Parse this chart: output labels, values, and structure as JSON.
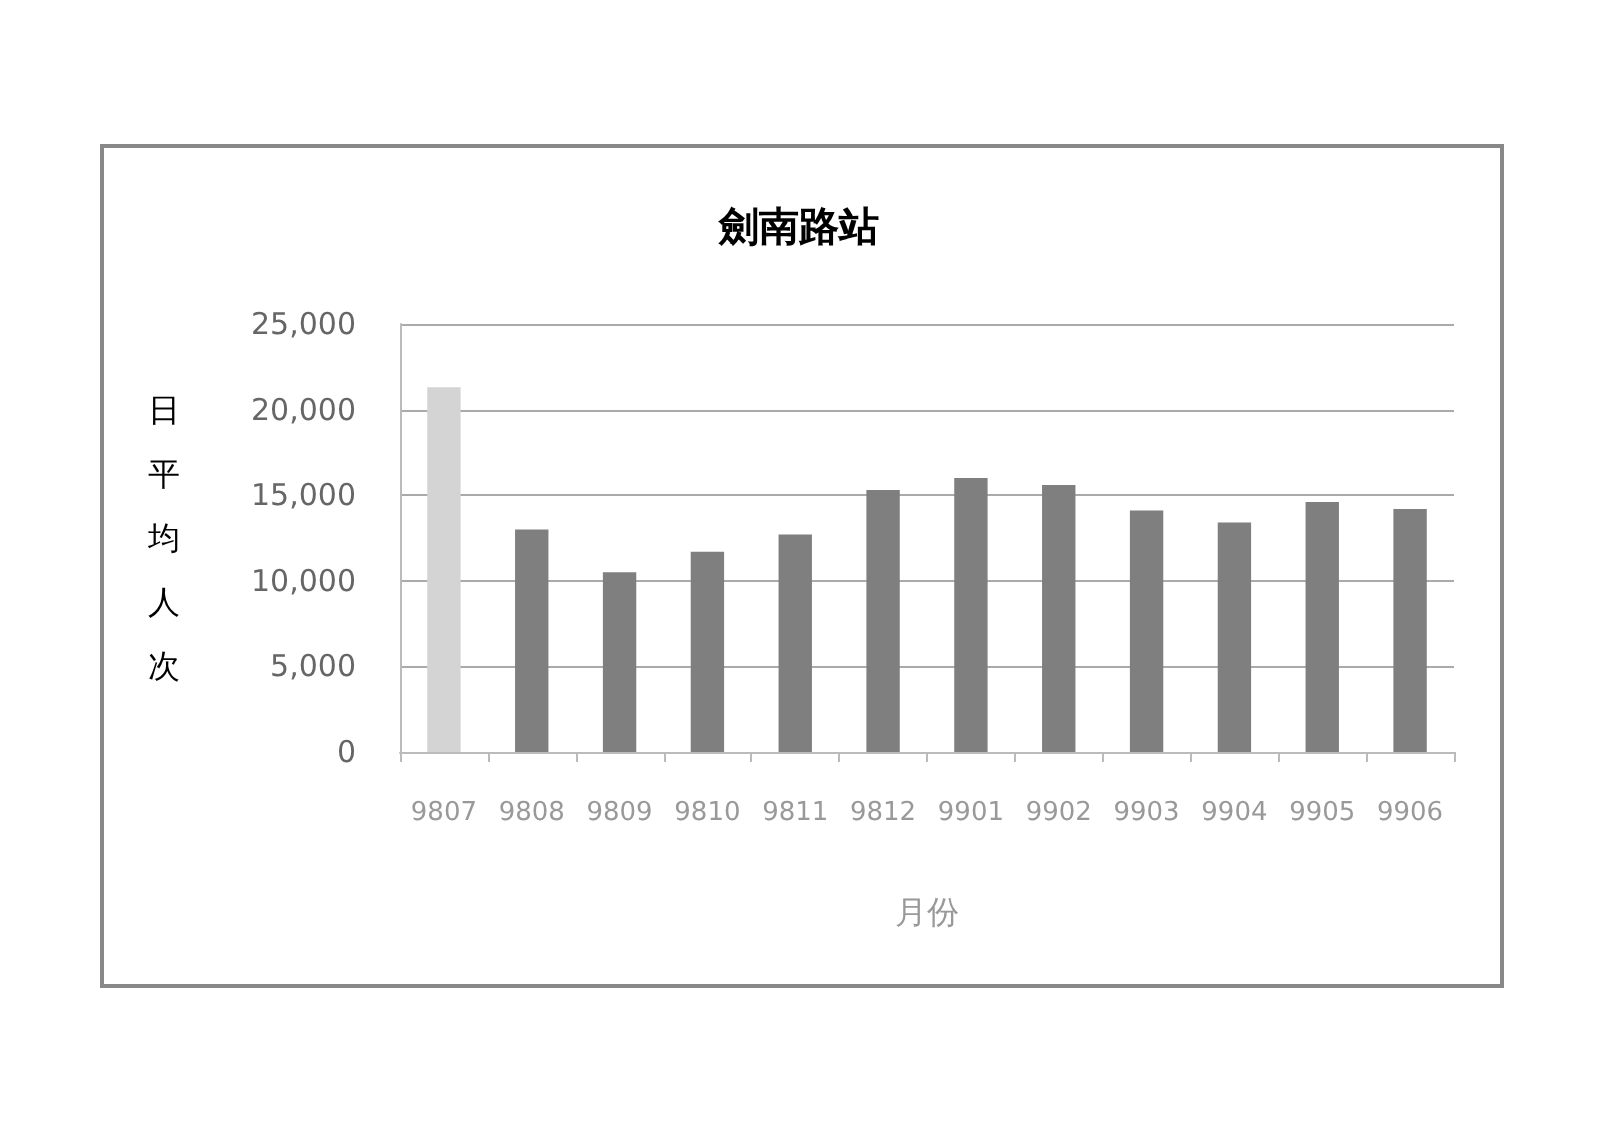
{
  "chart_data": {
    "type": "bar",
    "title": "劍南路站",
    "xlabel": "月份",
    "ylabel": "日平均人次",
    "categories": [
      "9807",
      "9808",
      "9809",
      "9810",
      "9811",
      "9812",
      "9901",
      "9902",
      "9903",
      "9904",
      "9905",
      "9906"
    ],
    "values": [
      21300,
      13000,
      10500,
      11700,
      12700,
      15300,
      16000,
      15600,
      14100,
      13400,
      14600,
      14200
    ],
    "colors": [
      "#d4d4d4",
      "#7f7f7f",
      "#7f7f7f",
      "#7f7f7f",
      "#7f7f7f",
      "#7f7f7f",
      "#7f7f7f",
      "#7f7f7f",
      "#7f7f7f",
      "#7f7f7f",
      "#7f7f7f",
      "#7f7f7f"
    ],
    "ylim": [
      0,
      25000
    ],
    "yticks": [
      0,
      {
        "value": 5000,
        "label": "5,000"
      },
      {
        "value": 10000,
        "label": "10,000"
      },
      {
        "value": 15000,
        "label": "15,000"
      },
      {
        "value": 20000,
        "label": "20,000"
      },
      {
        "value": 25000,
        "label": "25,000"
      }
    ],
    "grid": "y"
  }
}
